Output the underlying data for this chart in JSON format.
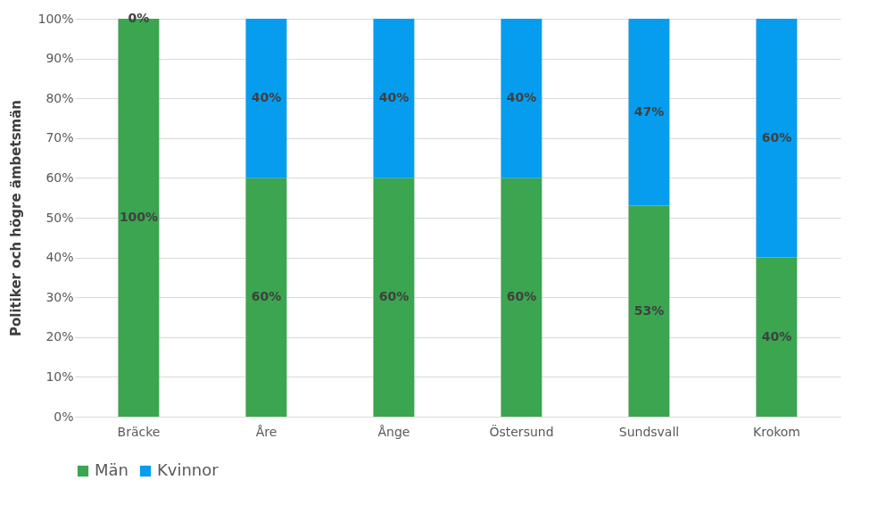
{
  "chart_data": {
    "type": "bar",
    "stacked": true,
    "ylabel": "Politiker och högre ämbetsmän",
    "categories": [
      "Bräcke",
      "Åre",
      "Ånge",
      "Östersund",
      "Sundsvall",
      "Krokom"
    ],
    "series": [
      {
        "name": "Män",
        "color": "#3ba550",
        "values": [
          100,
          60,
          60,
          60,
          53,
          40
        ],
        "value_labels": [
          "100%",
          "60%",
          "60%",
          "60%",
          "53%",
          "40%"
        ]
      },
      {
        "name": "Kvinnor",
        "color": "#069def",
        "values": [
          0,
          40,
          40,
          40,
          47,
          60
        ],
        "value_labels": [
          "0%",
          "40%",
          "40%",
          "40%",
          "47%",
          "60%"
        ]
      }
    ],
    "ylim": [
      0,
      100
    ],
    "yticks": [
      {
        "value": 0,
        "label": "0%"
      },
      {
        "value": 10,
        "label": "10%"
      },
      {
        "value": 20,
        "label": "20%"
      },
      {
        "value": 30,
        "label": "30%"
      },
      {
        "value": 40,
        "label": "40%"
      },
      {
        "value": 50,
        "label": "50%"
      },
      {
        "value": 60,
        "label": "60%"
      },
      {
        "value": 70,
        "label": "70%"
      },
      {
        "value": 80,
        "label": "80%"
      },
      {
        "value": 90,
        "label": "90%"
      },
      {
        "value": 100,
        "label": "100%"
      }
    ],
    "grid": true,
    "legend": "bottom"
  }
}
